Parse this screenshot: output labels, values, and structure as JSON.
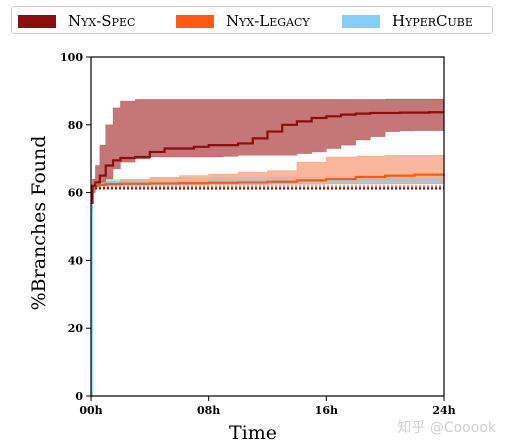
{
  "colors": {
    "nyx_spec": "#8b0d0d",
    "nyx_spec_band": "#b24a4a",
    "nyx_legacy": "#ff5a14",
    "nyx_legacy_band": "#f7a07a",
    "hypercube": "#86cef5",
    "hypercube_band": "#b7e1f7",
    "axis": "#000000"
  },
  "legend": [
    {
      "label": "Nyx-Spec",
      "color_key": "nyx_spec"
    },
    {
      "label": "Nyx-Legacy",
      "color_key": "nyx_legacy"
    },
    {
      "label": "HyperCube",
      "color_key": "hypercube"
    }
  ],
  "watermark": "知乎 @Cooook",
  "chart_data": {
    "type": "line",
    "xlabel": "Time",
    "ylabel": "%Branches Found",
    "xlim": [
      0,
      24
    ],
    "ylim": [
      0,
      100
    ],
    "x_ticks": [
      0,
      8,
      16,
      24
    ],
    "x_tick_labels": [
      "00h",
      "08h",
      "16h",
      "24h"
    ],
    "y_ticks": [
      0,
      20,
      40,
      60,
      80,
      100
    ],
    "y_tick_labels": [
      "0",
      "20",
      "40",
      "60",
      "80",
      "100"
    ],
    "series": [
      {
        "name": "HyperCube",
        "color_key": "hypercube",
        "band_color_key": "hypercube_band",
        "x": [
          0,
          0.05,
          0.1,
          0.3,
          0.6,
          1,
          2,
          4,
          8,
          12,
          16,
          20,
          24
        ],
        "y": [
          0,
          60,
          62,
          62.5,
          62.6,
          62.8,
          63,
          63.1,
          63.3,
          63.4,
          63.6,
          63.7,
          63.8
        ],
        "upper": [
          0,
          62,
          63,
          63.5,
          63.7,
          63.9,
          64,
          64.2,
          64.4,
          64.6,
          64.8,
          65,
          65
        ],
        "lower": [
          0,
          58,
          61.5,
          62,
          62.1,
          62.2,
          62.2,
          62.3,
          62.4,
          62.4,
          62.5,
          62.6,
          62.6
        ],
        "dotted": 62
      },
      {
        "name": "Nyx-Legacy",
        "color_key": "nyx_legacy",
        "band_color_key": "nyx_legacy_band",
        "x": [
          0,
          0.1,
          0.5,
          1,
          2,
          4,
          6,
          8,
          10,
          12,
          14,
          16,
          18,
          20,
          22,
          24
        ],
        "y": [
          57,
          62,
          62.3,
          62.5,
          62.6,
          62.7,
          62.8,
          62.9,
          63,
          63.2,
          63.6,
          64,
          64.6,
          65,
          65.3,
          65.4
        ],
        "upper": [
          60,
          62.5,
          63,
          63.4,
          63.8,
          64.5,
          65,
          65.5,
          66,
          66.5,
          69,
          70.5,
          70.8,
          71,
          71,
          71
        ],
        "lower": [
          55,
          61.5,
          62,
          62.1,
          62.2,
          62.3,
          62.3,
          62.4,
          62.4,
          62.5,
          62.5,
          62.6,
          62.6,
          62.6,
          62.6,
          62.6
        ],
        "dotted": 61.5
      },
      {
        "name": "Nyx-Spec",
        "color_key": "nyx_spec",
        "band_color_key": "nyx_spec_band",
        "x": [
          0,
          0.1,
          0.3,
          0.6,
          1,
          1.5,
          2,
          3,
          4,
          5,
          6,
          7,
          8,
          9,
          10,
          11,
          12,
          13,
          14,
          15,
          16,
          17,
          18,
          19,
          20,
          21,
          22,
          23,
          24
        ],
        "y": [
          57,
          62,
          63,
          65,
          68,
          69.5,
          70.2,
          70.5,
          72,
          73,
          73,
          73.5,
          74,
          74,
          74.5,
          76,
          78,
          80,
          81,
          82,
          82.5,
          83,
          83.3,
          83.5,
          83.5,
          83.6,
          83.6,
          83.7,
          83.7
        ],
        "upper": [
          60,
          64,
          68,
          74,
          80,
          85,
          87,
          87.5,
          87.5,
          87.5,
          87.5,
          87.5,
          87.5,
          87.5,
          87.5,
          87.5,
          87.5,
          87.5,
          87.5,
          87.5,
          87.5,
          87.5,
          87.5,
          87.5,
          87.6,
          87.6,
          87.6,
          87.6,
          87.6
        ],
        "lower": [
          55,
          60,
          62,
          63,
          64,
          67,
          69,
          70,
          70.5,
          70.5,
          70.5,
          70.5,
          70.5,
          70.7,
          71,
          71,
          71,
          71,
          71.5,
          72,
          73,
          74,
          75.5,
          76.5,
          78,
          78.2,
          78.3,
          78.3,
          78.4
        ],
        "dotted": 61.2
      }
    ]
  }
}
